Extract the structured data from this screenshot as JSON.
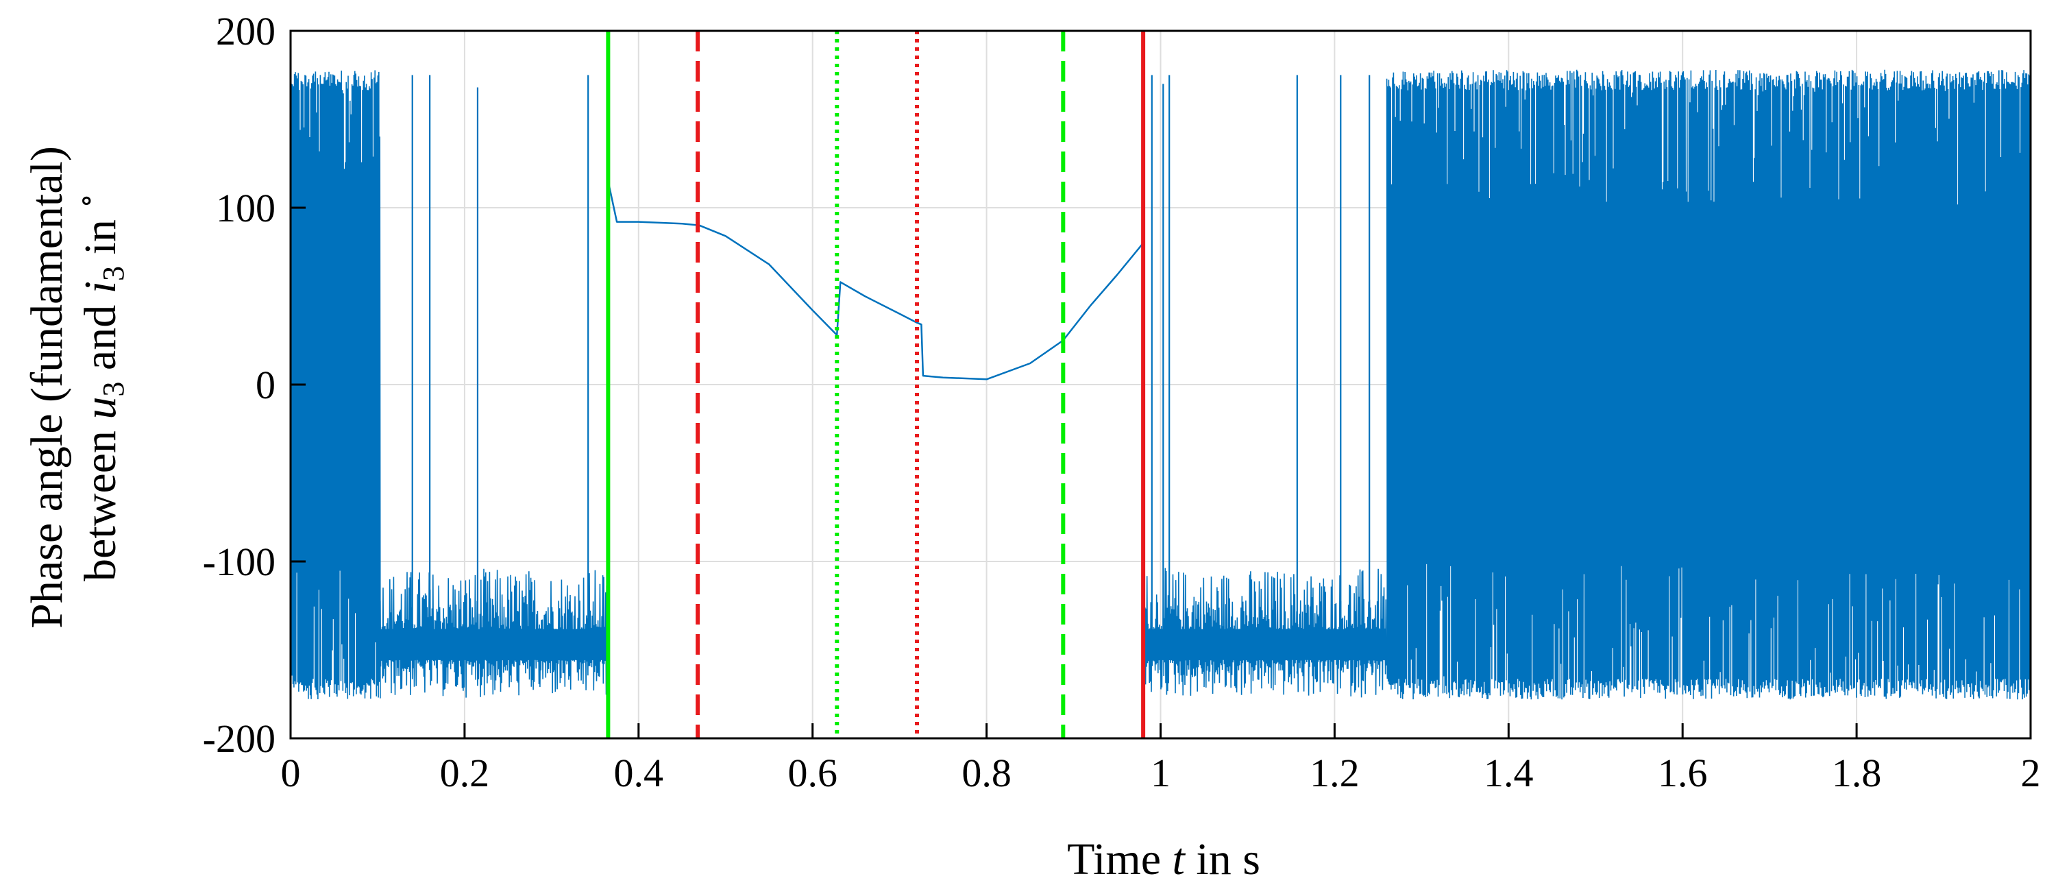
{
  "chart_data": {
    "type": "line",
    "title": "",
    "xlabel": "Time t in s",
    "xlabel_parts": {
      "prefix": "Time ",
      "variable": "t",
      "suffix": " in s"
    },
    "ylabel_line1": "Phase angle (fundamental)",
    "ylabel_line2_parts": {
      "a": "between ",
      "u": "u",
      "u_sub": "3",
      "mid": " and ",
      "i": "i",
      "i_sub": "3",
      "end": " in ",
      "degree": "∘"
    },
    "xlim": [
      0,
      2
    ],
    "ylim": [
      -200,
      200
    ],
    "xticks": [
      0,
      0.2,
      0.4,
      0.6,
      0.8,
      1,
      1.2,
      1.4,
      1.6,
      1.8,
      2
    ],
    "xtick_labels": [
      "0",
      "0.2",
      "0.4",
      "0.6",
      "0.8",
      "1",
      "1.2",
      "1.4",
      "1.6",
      "1.8",
      "2"
    ],
    "yticks": [
      -200,
      -100,
      0,
      100,
      200
    ],
    "ytick_labels": [
      "-200",
      "-100",
      "0",
      "100",
      "200"
    ],
    "grid": true,
    "series_color": "#0072BD",
    "series": [
      {
        "name": "phase angle",
        "noisy_segments": [
          {
            "x": [
              0,
              0.103
            ],
            "band": [
              -178,
              178
            ],
            "style": "full"
          },
          {
            "x": [
              0.103,
              0.365
            ],
            "band": [
              -178,
              -100
            ],
            "style": "negative",
            "spikes": [
              {
                "x": 0.14,
                "y": 175
              },
              {
                "x": 0.16,
                "y": 175
              },
              {
                "x": 0.215,
                "y": 168
              },
              {
                "x": 0.342,
                "y": 175
              }
            ]
          },
          {
            "x": [
              0.98,
              1.26
            ],
            "band": [
              -178,
              -100
            ],
            "style": "negative",
            "spikes": [
              {
                "x": 0.99,
                "y": 175
              },
              {
                "x": 1.003,
                "y": 170
              },
              {
                "x": 1.01,
                "y": 175
              },
              {
                "x": 1.157,
                "y": 175
              },
              {
                "x": 1.207,
                "y": 175
              },
              {
                "x": 1.24,
                "y": 175
              }
            ]
          },
          {
            "x": [
              1.26,
              2.0
            ],
            "band": [
              -178,
              178
            ],
            "style": "full"
          }
        ],
        "smooth_segment": {
          "x": [
            0.365,
            0.375,
            0.4,
            0.45,
            0.47,
            0.5,
            0.55,
            0.6,
            0.628,
            0.632,
            0.66,
            0.7,
            0.72,
            0.725,
            0.727,
            0.75,
            0.8,
            0.85,
            0.888,
            0.92,
            0.95,
            0.98
          ],
          "y": [
            115,
            92,
            92,
            91,
            90,
            84,
            68,
            42,
            28,
            58,
            50,
            40,
            35,
            34,
            5,
            4,
            3,
            12,
            25,
            45,
            62,
            80
          ]
        }
      }
    ],
    "vertical_markers": [
      {
        "x": 0.365,
        "color": "#00EE00",
        "style": "solid"
      },
      {
        "x": 0.468,
        "color": "#E8191C",
        "style": "dashed"
      },
      {
        "x": 0.628,
        "color": "#00EE00",
        "style": "dotted"
      },
      {
        "x": 0.72,
        "color": "#E8191C",
        "style": "dotted"
      },
      {
        "x": 0.888,
        "color": "#00EE00",
        "style": "dashed"
      },
      {
        "x": 0.98,
        "color": "#E8191C",
        "style": "solid"
      }
    ]
  }
}
